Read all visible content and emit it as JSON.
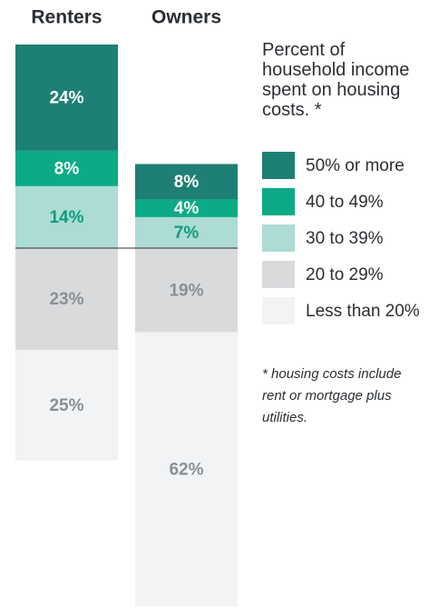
{
  "chart_data": {
    "type": "bar",
    "stacked": "diverging",
    "categories": [
      "Renters",
      "Owners"
    ],
    "legend_title": "Percent of household income spent on housing costs. *",
    "note": "* housing costs include rent or mortgage plus utilities.",
    "series": [
      {
        "name": "50% or more",
        "color": "#1e7f74",
        "label_color": "#ffffff",
        "values": [
          24,
          8
        ],
        "value_labels": [
          "24%",
          "8%"
        ]
      },
      {
        "name": "40 to 49%",
        "color": "#0bab85",
        "label_color": "#ffffff",
        "values": [
          8,
          4
        ],
        "value_labels": [
          "8%",
          "4%"
        ]
      },
      {
        "name": "30 to 39%",
        "color": "#acdcd4",
        "label_color": "#0f9c80",
        "values": [
          14,
          7
        ],
        "value_labels": [
          "14%",
          "7%"
        ]
      },
      {
        "name": "20 to 29%",
        "color": "#d9dadc",
        "label_color": "#8a8f94",
        "values": [
          23,
          19
        ],
        "value_labels": [
          "23%",
          "19%"
        ]
      },
      {
        "name": "Less than 20%",
        "color": "#f2f3f4",
        "label_color": "#8a8f94",
        "values": [
          25,
          62
        ],
        "value_labels": [
          "25%",
          "62%"
        ]
      }
    ]
  }
}
